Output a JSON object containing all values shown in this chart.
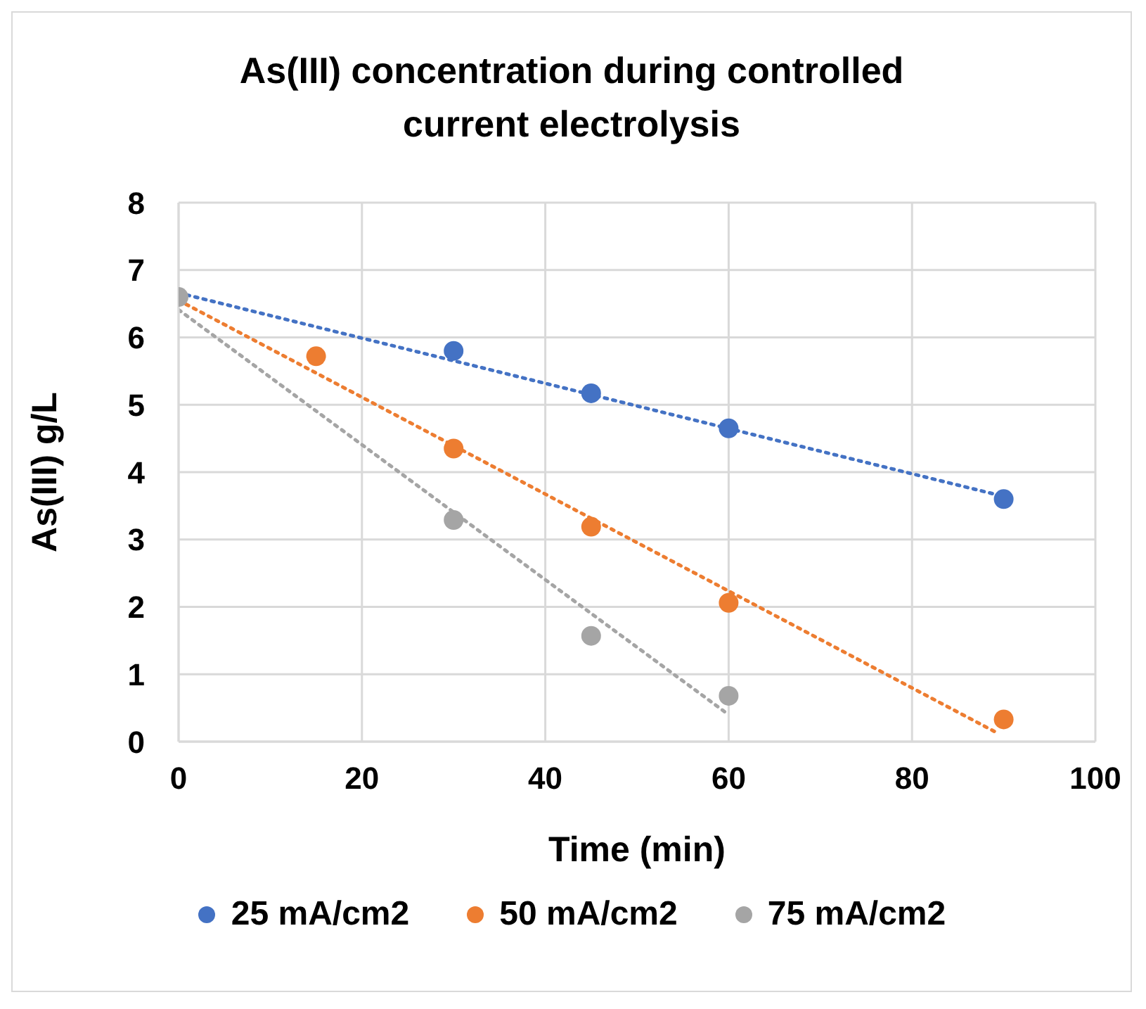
{
  "chart_data": {
    "type": "scatter",
    "title": "As(III) concentration during controlled current electrolysis",
    "xlabel": "Time (min)",
    "ylabel": "As(III) g/L",
    "xlim": [
      0,
      100
    ],
    "xticks": [
      0,
      20,
      40,
      60,
      80,
      100
    ],
    "ylim": [
      0,
      8
    ],
    "yticks": [
      0,
      1,
      2,
      3,
      4,
      5,
      6,
      7,
      8
    ],
    "grid": true,
    "legend": "bottom",
    "series": [
      {
        "name": "25 mA/cm2",
        "marker": "circle",
        "color": "#4472c4",
        "x": [
          30,
          45,
          60,
          90
        ],
        "values": [
          5.8,
          5.17,
          4.65,
          3.6
        ]
      },
      {
        "name": "50 mA/cm2",
        "marker": "circle",
        "color": "#ed7d31",
        "x": [
          15,
          30,
          45,
          60,
          90
        ],
        "values": [
          5.72,
          4.35,
          3.19,
          2.06,
          0.33
        ]
      },
      {
        "name": "75 mA/cm2",
        "marker": "circle",
        "color": "#a5a5a5",
        "x": [
          0,
          30,
          45,
          60
        ],
        "values": [
          6.6,
          3.29,
          1.57,
          0.68
        ]
      },
      {
        "type": "line",
        "marker": "none",
        "line_style": "dotted",
        "color": "#4472c4",
        "x": [
          0,
          90
        ],
        "values": [
          6.66,
          3.64
        ]
      },
      {
        "type": "line",
        "marker": "none",
        "line_style": "dotted",
        "color": "#ed7d31",
        "x": [
          0,
          89
        ],
        "values": [
          6.55,
          0.15
        ]
      },
      {
        "type": "line",
        "marker": "none",
        "line_style": "dotted",
        "color": "#a5a5a5",
        "x": [
          0,
          60
        ],
        "values": [
          6.41,
          0.4
        ]
      }
    ]
  }
}
